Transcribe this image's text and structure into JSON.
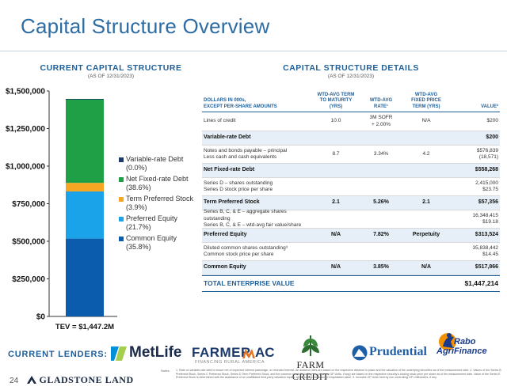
{
  "page": {
    "title": "Capital Structure Overview",
    "page_number": "24",
    "company_logo": "GLADSTONE LAND"
  },
  "left_section": {
    "title": "CURRENT CAPITAL STRUCTURE",
    "subtitle": "(AS OF 12/31/2023)"
  },
  "right_section": {
    "title": "CAPITAL STRUCTURE DETAILS",
    "subtitle": "(AS OF 12/31/2023)"
  },
  "chart_data": {
    "type": "bar",
    "stacked": true,
    "categories": [
      "TEV = $1,447.2M"
    ],
    "ylim": [
      0,
      1500000
    ],
    "yticks": [
      0,
      250000,
      500000,
      750000,
      1000000,
      1250000,
      1500000
    ],
    "ytick_labels": [
      "$0",
      "$250,000",
      "$500,000",
      "$750,000",
      "$1,000,000",
      "$1,250,000",
      "$1,500,000"
    ],
    "grid": false,
    "legend_position": "right",
    "series": [
      {
        "name": "Common Equity",
        "pct": "(35.8%)",
        "values": [
          517866
        ],
        "color": "#0b5cad"
      },
      {
        "name": "Preferred Equity",
        "pct": "(21.7%)",
        "values": [
          313524
        ],
        "color": "#1aa3e8"
      },
      {
        "name": "Term Preferred Stock",
        "pct": "(3.9%)",
        "values": [
          57356
        ],
        "color": "#f6a623"
      },
      {
        "name": "Net Fixed-rate Debt",
        "pct": "(38.6%)",
        "values": [
          558268
        ],
        "color": "#1fa046"
      },
      {
        "name": "Variable-rate Debt",
        "pct": "(0.0%)",
        "values": [
          200
        ],
        "color": "#1b3a6b"
      }
    ],
    "legend_order": [
      "Variable-rate Debt",
      "Net Fixed-rate Debt",
      "Term Preferred Stock",
      "Preferred Equity",
      "Common Equity"
    ]
  },
  "details": {
    "header": {
      "col0": "DOLLARS IN 000s,\nEXCEPT PER-SHARE AMOUNTS",
      "col1": "WTD-AVG TERM\nTO MATURITY\n(YRS)",
      "col2": "WTD-AVG\nRATE¹",
      "col3": "WTD-AVG\nFIXED PRICE\nTERM (YRS)",
      "col4": "VALUE²"
    },
    "rows": [
      {
        "type": "detail",
        "c0": "Lines of credit",
        "c1": "10.0",
        "c2": "3M SOFR\n+ 2.00%",
        "c3": "N/A",
        "c4": "$200"
      },
      {
        "type": "sum",
        "c0": "Variable-rate Debt",
        "c1": "",
        "c2": "",
        "c3": "",
        "c4": "$200"
      },
      {
        "type": "detail",
        "c0": "Notes and bonds payable – principal\nLess cash and cash equivalents",
        "c1": "8.7",
        "c2": "3.34%",
        "c3": "4.2",
        "c4": "$576,839\n(18,571)"
      },
      {
        "type": "sum",
        "c0": "Net Fixed-rate Debt",
        "c1": "",
        "c2": "",
        "c3": "",
        "c4": "$558,268"
      },
      {
        "type": "detail",
        "c0": "Series D – shares outstanding\nSeries D stock price per share",
        "c1": "",
        "c2": "",
        "c3": "",
        "c4": "2,415,000\n$23.75"
      },
      {
        "type": "sum",
        "c0": "Term Preferred Stock",
        "c1": "2.1",
        "c2": "5.26%",
        "c3": "2.1",
        "c4": "$57,356"
      },
      {
        "type": "detail",
        "c0": "Series B, C, & E – aggregate shares outstanding\nSeries B, C, & E – wtd-avg fair value/share",
        "c1": "",
        "c2": "",
        "c3": "",
        "c4": "16,348,415\n$19.18"
      },
      {
        "type": "sum",
        "c0": "Preferred Equity",
        "c1": "N/A",
        "c2": "7.82%",
        "c3": "Perpetuity",
        "c4": "$313,524"
      },
      {
        "type": "detail",
        "c0": "Diluted common shares outstanding³\nCommon stock price per share",
        "c1": "",
        "c2": "",
        "c3": "",
        "c4": "35,838,442\n$14.45"
      },
      {
        "type": "sum",
        "c0": "Common Equity",
        "c1": "N/A",
        "c2": "3.85%",
        "c3": "N/A",
        "c4": "$517,866"
      },
      {
        "type": "total",
        "c0": "TOTAL ENTERPRISE VALUE",
        "c1": "",
        "c2": "",
        "c3": "",
        "c4": "$1,447,214"
      }
    ]
  },
  "lenders": {
    "label": "CURRENT LENDERS:",
    "metlife": "MetLife",
    "farmer_mac": "FARMER",
    "farmer_mac_mac": "AC",
    "farmer_mac_tag": "FINANCING RURAL AMERICA",
    "farm_credit": "FARM CREDIT",
    "prudential": "Prudential",
    "rabo_1": "Rabo",
    "rabo_2": "AgriFinance"
  },
  "notes": {
    "label": "Notes:",
    "text": "1. Rate on variable-rate debt is shown net of expected interest patronage, or refunded interest. All dividend rates are based on the respective dividend in place and the valuation of the underlying securities as of the measurement date. 2. Values of the Series B Preferred Stock, Series C Preferred Stock, Series D Term Preferred Stock, and the common stock (including any common OP Units, if any) are based on the respective security's closing stock price per share as of the measurement date. Value of the Series E Preferred Stock is determined with the assistance of an unaffiliated third-party valuation expert, which equals the security's liquidation value. 3. Includes OP Units held by non-controlling OP Unitholders, if any."
  }
}
